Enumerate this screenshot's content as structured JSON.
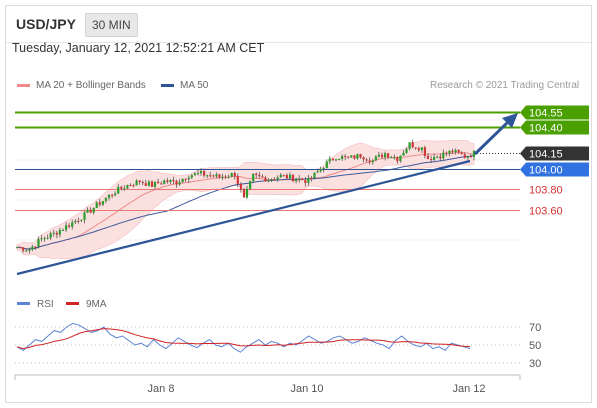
{
  "header": {
    "symbol": "USD/JPY",
    "interval": "30 MIN",
    "datetime": "Tuesday, January 12, 2021 12:52:21 AM CET"
  },
  "legend": {
    "ma_bb": "MA 20 + Bollinger Bands",
    "ma50": "MA 50",
    "copyright": "Research © 2021 Trading Central"
  },
  "rsi_legend": {
    "rsi": "RSI",
    "ma9": "9MA"
  },
  "colors": {
    "up": "#2a9d2a",
    "down": "#d23535",
    "resistance": "#4aa000",
    "support": "#e87878",
    "pivot": "#2f72e0",
    "trend": "#2e5597",
    "bollinger_fill": "#fbe0e0",
    "ma20": "#f08a8a",
    "ma50": "#3f5a9a",
    "rsi": "#5b84d6",
    "rsi_ma": "#d22222"
  },
  "levels": [
    {
      "value": "104.55",
      "type": "resistance"
    },
    {
      "value": "104.40",
      "type": "resistance"
    },
    {
      "value": "104.15",
      "type": "last"
    },
    {
      "value": "104.00",
      "type": "pivot"
    },
    {
      "value": "103.80",
      "type": "support"
    },
    {
      "value": "103.60",
      "type": "support"
    }
  ],
  "rsi_ticks": [
    "70",
    "50",
    "30"
  ],
  "x_labels": [
    "Jan 8",
    "Jan 10",
    "Jan 12"
  ],
  "chart_data": {
    "type": "candlestick",
    "series_name": "USD/JPY",
    "ylim": [
      103.1,
      104.68
    ],
    "price_path": [
      [
        0,
        103.24
      ],
      [
        4,
        103.22
      ],
      [
        8,
        103.32
      ],
      [
        12,
        103.37
      ],
      [
        16,
        103.44
      ],
      [
        22,
        103.55
      ],
      [
        27,
        103.67
      ],
      [
        32,
        103.78
      ],
      [
        36,
        103.84
      ],
      [
        40,
        103.88
      ],
      [
        44,
        103.84
      ],
      [
        48,
        103.88
      ],
      [
        52,
        103.87
      ],
      [
        56,
        103.94
      ],
      [
        60,
        103.95
      ],
      [
        66,
        103.92
      ],
      [
        71,
        103.95
      ],
      [
        74,
        103.7
      ],
      [
        77,
        103.93
      ],
      [
        82,
        103.9
      ],
      [
        86,
        103.93
      ],
      [
        92,
        103.9
      ],
      [
        95,
        103.88
      ],
      [
        100,
        104.03
      ],
      [
        104,
        104.12
      ],
      [
        108,
        104.1
      ],
      [
        112,
        104.13
      ],
      [
        116,
        104.08
      ],
      [
        120,
        104.15
      ],
      [
        124,
        104.1
      ],
      [
        128,
        104.24
      ],
      [
        132,
        104.2
      ],
      [
        134,
        104.1
      ],
      [
        138,
        104.13
      ],
      [
        142,
        104.17
      ],
      [
        146,
        104.12
      ],
      [
        149,
        104.15
      ]
    ],
    "rsi": [
      48,
      44,
      50,
      56,
      54,
      60,
      66,
      64,
      70,
      74,
      72,
      68,
      64,
      66,
      70,
      62,
      58,
      60,
      55,
      50,
      52,
      48,
      56,
      50,
      46,
      52,
      58,
      54,
      50,
      47,
      52,
      56,
      50,
      48,
      52,
      46,
      42,
      48,
      52,
      56,
      50,
      54,
      52,
      48,
      52,
      50,
      55,
      60,
      56,
      52,
      54,
      58,
      60,
      56,
      52,
      54,
      58,
      55,
      52,
      50,
      46,
      55,
      60,
      54,
      50,
      48,
      52,
      46,
      48,
      44,
      52,
      50,
      48,
      46
    ]
  }
}
